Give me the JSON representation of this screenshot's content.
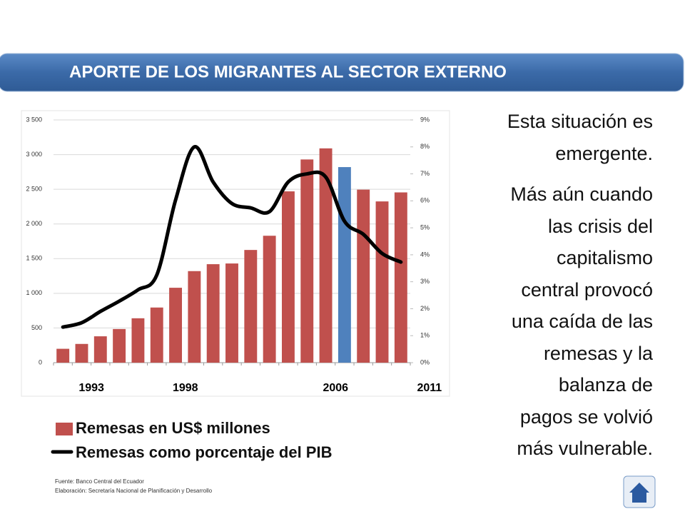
{
  "header": {
    "title": "APORTE DE LOS MIGRANTES AL SECTOR  EXTERNO"
  },
  "chart_data": {
    "type": "combo",
    "categories": [
      "1993",
      null,
      null,
      null,
      null,
      "1998",
      null,
      null,
      null,
      null,
      null,
      null,
      null,
      "2006",
      null,
      null,
      null,
      null,
      "2011"
    ],
    "series": [
      {
        "name": "Remesas en US$ millones",
        "type": "bar",
        "color": "#c0504d",
        "colors": [
          "#c0504d",
          "#c0504d",
          "#c0504d",
          "#c0504d",
          "#c0504d",
          "#c0504d",
          "#c0504d",
          "#c0504d",
          "#c0504d",
          "#c0504d",
          "#c0504d",
          "#c0504d",
          "#c0504d",
          "#c0504d",
          "#c0504d",
          "#4f81bd",
          "#c0504d",
          "#c0504d",
          "#c0504d"
        ],
        "values": [
          200,
          270,
          380,
          485,
          640,
          795,
          1080,
          1320,
          1420,
          1430,
          1625,
          1830,
          2470,
          2930,
          3090,
          2820,
          2495,
          2325,
          2455
        ]
      },
      {
        "name": "Remesas como porcentaje del PIB",
        "type": "line",
        "axis": "y2",
        "color": "#000000",
        "values": [
          1.32,
          1.48,
          1.9,
          2.28,
          2.7,
          3.25,
          6.03,
          8.0,
          6.7,
          5.9,
          5.74,
          5.6,
          6.7,
          7.0,
          6.88,
          5.24,
          4.76,
          4.05,
          3.73
        ]
      }
    ],
    "ylim": [
      0,
      3500
    ],
    "yticks": [
      0,
      500,
      {
        "value": 1000,
        "label": "1 000"
      },
      {
        "value": 1500,
        "label": "1 500"
      },
      {
        "value": 2000,
        "label": "2 000"
      },
      {
        "value": 2500,
        "label": "2 500"
      },
      {
        "value": 3000,
        "label": "3 000"
      },
      {
        "value": 3500,
        "label": "3 500"
      }
    ],
    "y2lim": [
      0,
      9
    ],
    "y2ticks": [
      {
        "value": 0,
        "label": "0%"
      },
      {
        "value": 1,
        "label": "1%"
      },
      {
        "value": 2,
        "label": "2%"
      },
      {
        "value": 3,
        "label": "3%"
      },
      {
        "value": 4,
        "label": "4%"
      },
      {
        "value": 5,
        "label": "5%"
      },
      {
        "value": 6,
        "label": "6%"
      },
      {
        "value": 7,
        "label": "7%"
      },
      {
        "value": 8,
        "label": "8%"
      },
      {
        "value": 9,
        "label": "9%"
      }
    ],
    "grid": true
  },
  "text": {
    "paragraphs": [
      [
        "Esta situación es",
        "emergente."
      ],
      [
        "Más aún cuando",
        "las crisis del",
        "capitalismo",
        "central provocó",
        "una caída de las",
        "remesas y la",
        "balanza de",
        "pagos se volvió",
        "más vulnerable."
      ]
    ]
  },
  "source": [
    "Fuente: Banco Central del Ecuador",
    "Elaboración: Secretaría Nacional de Planificación y Desarrollo"
  ]
}
